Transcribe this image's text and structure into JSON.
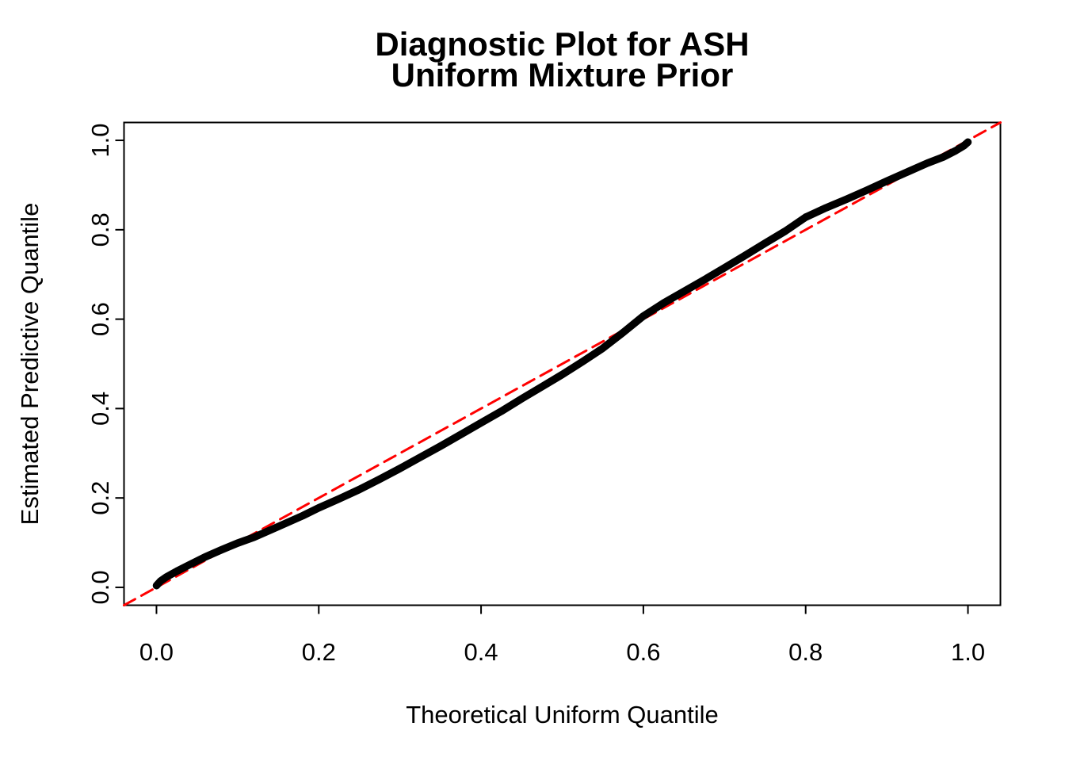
{
  "figure": {
    "title_line1": "Diagnostic Plot for ASH",
    "title_line2": "Uniform Mixture Prior",
    "x_axis_label": "Theoretical Uniform Quantile",
    "y_axis_label": "Estimated Predictive Quantile"
  },
  "chart_data": {
    "type": "line",
    "title": "Diagnostic Plot for ASH\nUniform Mixture Prior",
    "xlabel": "Theoretical Uniform Quantile",
    "ylabel": "Estimated Predictive Quantile",
    "xlim": [
      -0.04,
      1.04
    ],
    "ylim": [
      -0.04,
      1.04
    ],
    "grid": false,
    "legend_position": "none",
    "x_ticks": [
      0.0,
      0.2,
      0.4,
      0.6,
      0.8,
      1.0
    ],
    "y_ticks": [
      0.0,
      0.2,
      0.4,
      0.6,
      0.8,
      1.0
    ],
    "x_tick_labels": [
      "0.0",
      "0.2",
      "0.4",
      "0.6",
      "0.8",
      "1.0"
    ],
    "y_tick_labels": [
      "0.0",
      "0.2",
      "0.4",
      "0.6",
      "0.8",
      "1.0"
    ],
    "colors": {
      "background": "#FFFFFF",
      "axis": "#000000",
      "curve": "#000000",
      "reference": "#FF0000"
    },
    "series": [
      {
        "name": "estimated_predictive_quantiles",
        "type": "line",
        "style": "solid",
        "color": "#000000",
        "line_width": 9.5,
        "points": [
          [
            0.0,
            0.004
          ],
          [
            0.005,
            0.014
          ],
          [
            0.012,
            0.023
          ],
          [
            0.025,
            0.036
          ],
          [
            0.04,
            0.05
          ],
          [
            0.06,
            0.068
          ],
          [
            0.08,
            0.084
          ],
          [
            0.1,
            0.099
          ],
          [
            0.12,
            0.112
          ],
          [
            0.15,
            0.136
          ],
          [
            0.18,
            0.16
          ],
          [
            0.2,
            0.178
          ],
          [
            0.225,
            0.198
          ],
          [
            0.25,
            0.219
          ],
          [
            0.275,
            0.242
          ],
          [
            0.3,
            0.266
          ],
          [
            0.325,
            0.291
          ],
          [
            0.35,
            0.316
          ],
          [
            0.375,
            0.342
          ],
          [
            0.4,
            0.368
          ],
          [
            0.425,
            0.394
          ],
          [
            0.45,
            0.422
          ],
          [
            0.475,
            0.449
          ],
          [
            0.5,
            0.476
          ],
          [
            0.525,
            0.505
          ],
          [
            0.55,
            0.535
          ],
          [
            0.575,
            0.57
          ],
          [
            0.6,
            0.607
          ],
          [
            0.625,
            0.636
          ],
          [
            0.65,
            0.662
          ],
          [
            0.675,
            0.688
          ],
          [
            0.7,
            0.715
          ],
          [
            0.725,
            0.742
          ],
          [
            0.75,
            0.77
          ],
          [
            0.775,
            0.797
          ],
          [
            0.8,
            0.828
          ],
          [
            0.825,
            0.849
          ],
          [
            0.85,
            0.868
          ],
          [
            0.875,
            0.888
          ],
          [
            0.9,
            0.909
          ],
          [
            0.925,
            0.929
          ],
          [
            0.95,
            0.949
          ],
          [
            0.97,
            0.963
          ],
          [
            0.985,
            0.977
          ],
          [
            0.995,
            0.988
          ],
          [
            1.0,
            0.996
          ]
        ]
      },
      {
        "name": "identity_reference_line",
        "type": "line",
        "style": "dashed",
        "color": "#FF0000",
        "line_width": 3,
        "points": [
          [
            -0.04,
            -0.04
          ],
          [
            1.04,
            1.04
          ]
        ]
      }
    ]
  }
}
